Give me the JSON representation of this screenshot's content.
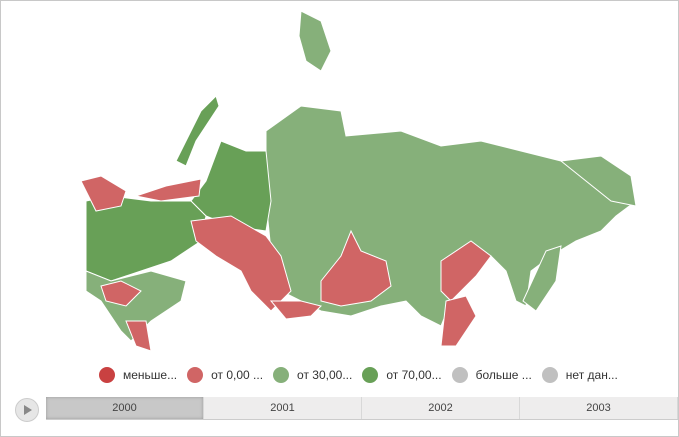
{
  "legend": [
    {
      "label": "меньше...",
      "color": "#c94141"
    },
    {
      "label": "от 0,00 ...",
      "color": "#d06565"
    },
    {
      "label": "от 30,00...",
      "color": "#86b07a"
    },
    {
      "label": "от 70,00...",
      "color": "#68a057"
    },
    {
      "label": "больше ...",
      "color": "#c0c0c0"
    },
    {
      "label": "нет дан...",
      "color": "#c0c0c0"
    }
  ],
  "timeline": {
    "years": [
      "2000",
      "2001",
      "2002",
      "2003"
    ],
    "selected": "2000"
  },
  "colors": {
    "low": "#d06565",
    "mid": "#86b07a",
    "high": "#68a057"
  }
}
